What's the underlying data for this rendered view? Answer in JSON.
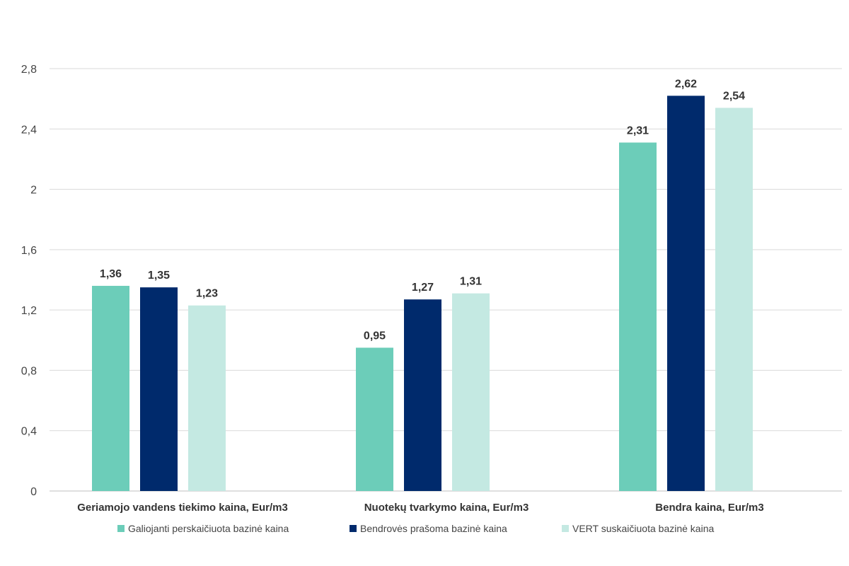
{
  "chart_data": {
    "type": "bar",
    "title": "",
    "xlabel": "",
    "ylabel": "",
    "categories": [
      "Geriamojo vandens tiekimo kaina, Eur/m3",
      "Nuotekų tvarkymo kaina, Eur/m3",
      "Bendra kaina, Eur/m3"
    ],
    "series": [
      {
        "name": "Galiojanti perskaičiuota bazinė kaina",
        "color": "#6ccdb9",
        "values": [
          1.36,
          0.95,
          2.31
        ],
        "labels": [
          "1,36",
          "0,95",
          "2,31"
        ]
      },
      {
        "name": "Bendrovės prašoma bazinė kaina",
        "color": "#002a6c",
        "values": [
          1.35,
          1.27,
          2.62
        ],
        "labels": [
          "1,35",
          "1,27",
          "2,62"
        ]
      },
      {
        "name": "VERT suskaičiuota bazinė kaina",
        "color": "#c4e9e2",
        "values": [
          1.23,
          1.31,
          2.54
        ],
        "labels": [
          "1,23",
          "1,31",
          "2,54"
        ]
      }
    ],
    "ylim": [
      0,
      2.8
    ],
    "yticks": [
      0,
      0.4,
      0.8,
      1.2,
      1.6,
      2,
      2.4,
      2.8
    ],
    "ytick_labels": [
      "0",
      "0,4",
      "0,8",
      "1,2",
      "1,6",
      "2",
      "2,4",
      "2,8"
    ],
    "grid": true,
    "legend_position": "bottom"
  }
}
